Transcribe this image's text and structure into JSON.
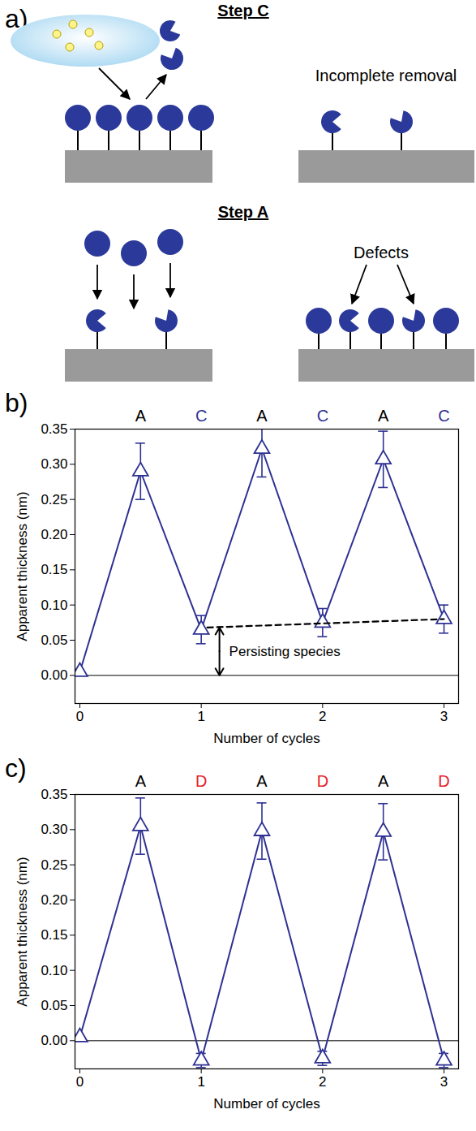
{
  "diagram": {
    "label": "a)",
    "step_c": {
      "title": "Step C",
      "note": "Incomplete removal"
    },
    "step_a": {
      "title": "Step A",
      "note": "Defects"
    }
  },
  "chart_data": [
    {
      "type": "line",
      "label": "b)",
      "x_label": "Number of cycles",
      "y_label": "Apparent thickness (nm)",
      "x": [
        0,
        0.5,
        1,
        1.5,
        2,
        2.5,
        3
      ],
      "values": [
        0.005,
        0.29,
        0.065,
        0.322,
        0.075,
        0.307,
        0.08
      ],
      "errors": [
        0,
        0.04,
        0.02,
        0.04,
        0.02,
        0.04,
        0.02
      ],
      "color": "#2e3192",
      "marker": "triangle",
      "xlim": [
        -0.04,
        3.12
      ],
      "xticks": [
        0,
        1,
        2,
        3
      ],
      "ylim": [
        -0.04,
        0.35
      ],
      "yticks": [
        {
          "value": 0,
          "label": "0.00"
        },
        {
          "value": 0.05,
          "label": "0.05"
        },
        {
          "value": 0.1,
          "label": "0.10"
        },
        {
          "value": 0.15,
          "label": "0.15"
        },
        {
          "value": 0.2,
          "label": "0.20"
        },
        {
          "value": 0.25,
          "label": "0.25"
        },
        {
          "value": 0.3,
          "label": "0.30"
        },
        {
          "value": 0.35,
          "label": "0.35"
        }
      ],
      "reference_line": 0,
      "annotations": [
        {
          "text": "A",
          "x": 0.5,
          "color": "#000000"
        },
        {
          "text": "C",
          "x": 1,
          "color": "#2e3192"
        },
        {
          "text": "A",
          "x": 1.5,
          "color": "#000000"
        },
        {
          "text": "C",
          "x": 2,
          "color": "#2e3192"
        },
        {
          "text": "A",
          "x": 2.5,
          "color": "#000000"
        },
        {
          "text": "C",
          "x": 3,
          "color": "#2e3192"
        }
      ],
      "trend": {
        "x": [
          1.05,
          3
        ],
        "values": [
          0.068,
          0.08
        ],
        "line_style": "dashed",
        "color": "#000000"
      },
      "arrow_annotation": {
        "text": "Persisting species",
        "x": 1.15,
        "y_from": 0,
        "y_to": 0.068
      }
    },
    {
      "type": "line",
      "label": "c)",
      "x_label": "Number of cycles",
      "y_label": "Apparent thickness (nm)",
      "x": [
        0,
        0.5,
        1,
        1.5,
        2,
        2.5,
        3
      ],
      "values": [
        0.005,
        0.305,
        -0.028,
        0.298,
        -0.025,
        0.297,
        -0.028
      ],
      "errors": [
        0,
        0.04,
        0.01,
        0.04,
        0.01,
        0.04,
        0.01
      ],
      "color": "#2e3192",
      "marker": "triangle",
      "xlim": [
        -0.04,
        3.12
      ],
      "xticks": [
        0,
        1,
        2,
        3
      ],
      "ylim": [
        -0.04,
        0.35
      ],
      "yticks": [
        {
          "value": 0,
          "label": "0.00"
        },
        {
          "value": 0.05,
          "label": "0.05"
        },
        {
          "value": 0.1,
          "label": "0.10"
        },
        {
          "value": 0.15,
          "label": "0.15"
        },
        {
          "value": 0.2,
          "label": "0.20"
        },
        {
          "value": 0.25,
          "label": "0.25"
        },
        {
          "value": 0.3,
          "label": "0.30"
        },
        {
          "value": 0.35,
          "label": "0.35"
        }
      ],
      "reference_line": 0,
      "annotations": [
        {
          "text": "A",
          "x": 0.5,
          "color": "#000000"
        },
        {
          "text": "D",
          "x": 1,
          "color": "#e8202a"
        },
        {
          "text": "A",
          "x": 1.5,
          "color": "#000000"
        },
        {
          "text": "D",
          "x": 2,
          "color": "#e8202a"
        },
        {
          "text": "A",
          "x": 2.5,
          "color": "#000000"
        },
        {
          "text": "D",
          "x": 3,
          "color": "#e8202a"
        }
      ]
    }
  ]
}
